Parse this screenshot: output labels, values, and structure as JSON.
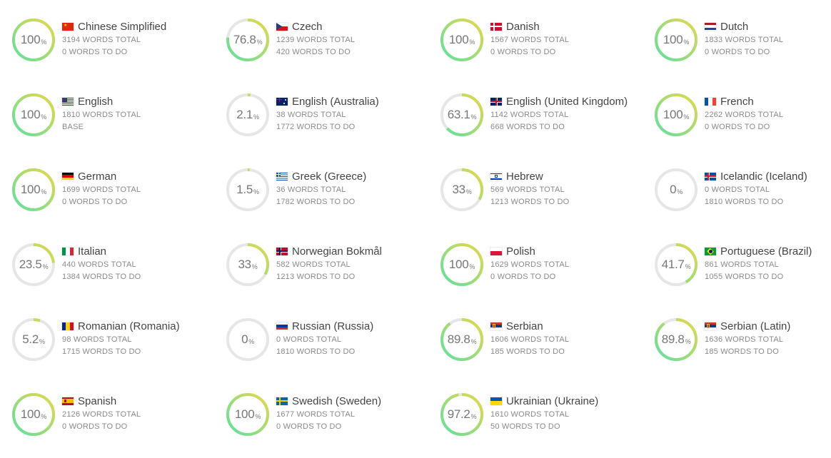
{
  "suffix_total": "WORDS TOTAL",
  "suffix_todo": "WORDS TO DO",
  "colors": {
    "track": "#e6e6e6",
    "grad_start": "#5ee0a0",
    "grad_end": "#e6d84a",
    "text": "#777777"
  },
  "languages": [
    {
      "name": "Chinese Simplified",
      "percent": 100,
      "percent_label": "100",
      "total": "3194",
      "sub": "0 WORDS TO DO",
      "flag": "cn"
    },
    {
      "name": "Czech",
      "percent": 76.8,
      "percent_label": "76.8",
      "total": "1239",
      "sub": "420 WORDS TO DO",
      "flag": "cz"
    },
    {
      "name": "Danish",
      "percent": 100,
      "percent_label": "100",
      "total": "1567",
      "sub": "0 WORDS TO DO",
      "flag": "dk"
    },
    {
      "name": "Dutch",
      "percent": 100,
      "percent_label": "100",
      "total": "1833",
      "sub": "0 WORDS TO DO",
      "flag": "nl"
    },
    {
      "name": "English",
      "percent": 100,
      "percent_label": "100",
      "total": "1810",
      "sub": "BASE",
      "flag": "us"
    },
    {
      "name": "English (Australia)",
      "percent": 2.1,
      "percent_label": "2.1",
      "total": "38",
      "sub": "1772 WORDS TO DO",
      "flag": "au"
    },
    {
      "name": "English (United Kingdom)",
      "percent": 63.1,
      "percent_label": "63.1",
      "total": "1142",
      "sub": "668 WORDS TO DO",
      "flag": "gb"
    },
    {
      "name": "French",
      "percent": 100,
      "percent_label": "100",
      "total": "2262",
      "sub": "0 WORDS TO DO",
      "flag": "fr"
    },
    {
      "name": "German",
      "percent": 100,
      "percent_label": "100",
      "total": "1699",
      "sub": "0 WORDS TO DO",
      "flag": "de"
    },
    {
      "name": "Greek (Greece)",
      "percent": 1.5,
      "percent_label": "1.5",
      "total": "36",
      "sub": "1782 WORDS TO DO",
      "flag": "gr"
    },
    {
      "name": "Hebrew",
      "percent": 33,
      "percent_label": "33",
      "total": "569",
      "sub": "1213 WORDS TO DO",
      "flag": "il"
    },
    {
      "name": "Icelandic (Iceland)",
      "percent": 0,
      "percent_label": "0",
      "total": "0",
      "sub": "1810 WORDS TO DO",
      "flag": "is"
    },
    {
      "name": "Italian",
      "percent": 23.5,
      "percent_label": "23.5",
      "total": "440",
      "sub": "1384 WORDS TO DO",
      "flag": "it"
    },
    {
      "name": "Norwegian Bokmål",
      "percent": 33,
      "percent_label": "33",
      "total": "582",
      "sub": "1213 WORDS TO DO",
      "flag": "no"
    },
    {
      "name": "Polish",
      "percent": 100,
      "percent_label": "100",
      "total": "1629",
      "sub": "0 WORDS TO DO",
      "flag": "pl"
    },
    {
      "name": "Portuguese (Brazil)",
      "percent": 41.7,
      "percent_label": "41.7",
      "total": "861",
      "sub": "1055 WORDS TO DO",
      "flag": "br"
    },
    {
      "name": "Romanian (Romania)",
      "percent": 5.2,
      "percent_label": "5.2",
      "total": "98",
      "sub": "1715 WORDS TO DO",
      "flag": "ro"
    },
    {
      "name": "Russian (Russia)",
      "percent": 0,
      "percent_label": "0",
      "total": "0",
      "sub": "1810 WORDS TO DO",
      "flag": "ru"
    },
    {
      "name": "Serbian",
      "percent": 89.8,
      "percent_label": "89.8",
      "total": "1606",
      "sub": "185 WORDS TO DO",
      "flag": "rs"
    },
    {
      "name": "Serbian (Latin)",
      "percent": 89.8,
      "percent_label": "89.8",
      "total": "1636",
      "sub": "185 WORDS TO DO",
      "flag": "rs"
    },
    {
      "name": "Spanish",
      "percent": 100,
      "percent_label": "100",
      "total": "2126",
      "sub": "0 WORDS TO DO",
      "flag": "es"
    },
    {
      "name": "Swedish (Sweden)",
      "percent": 100,
      "percent_label": "100",
      "total": "1677",
      "sub": "0 WORDS TO DO",
      "flag": "se"
    },
    {
      "name": "Ukrainian (Ukraine)",
      "percent": 97.2,
      "percent_label": "97.2",
      "total": "1610",
      "sub": "50 WORDS TO DO",
      "flag": "ua"
    }
  ]
}
